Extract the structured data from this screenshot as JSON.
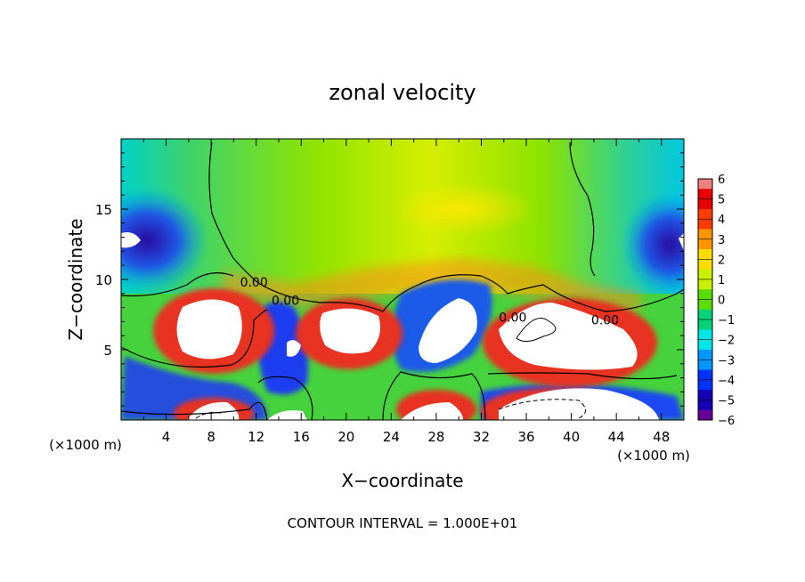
{
  "chart_data": {
    "type": "heatmap",
    "title": "zonal velocity",
    "xlabel": "X−coordinate",
    "ylabel": "Z−coordinate",
    "x_unit_left": "(×1000 m)",
    "x_unit_right": "(×1000 m)",
    "footer": "CONTOUR INTERVAL = 1.000E+01",
    "xlim": [
      0,
      50
    ],
    "ylim": [
      0,
      20
    ],
    "x_ticks": [
      4,
      8,
      12,
      16,
      20,
      24,
      28,
      32,
      36,
      40,
      44,
      48
    ],
    "x_tick_labels": [
      "4",
      "8",
      "12",
      "16",
      "20",
      "24",
      "28",
      "32",
      "36",
      "40",
      "44",
      "48"
    ],
    "y_ticks": [
      5,
      10,
      15
    ],
    "y_tick_labels": [
      "5",
      "10",
      "15"
    ],
    "colorbar": {
      "levels": [
        6,
        5,
        4,
        3,
        2,
        1,
        0,
        -1,
        -2,
        -3,
        -4,
        -5,
        -6
      ],
      "labels": [
        "6",
        "5",
        "4",
        "3",
        "2",
        "1",
        "0",
        "−1",
        "−2",
        "−3",
        "−4",
        "−5",
        "−6"
      ],
      "colors": [
        "#f08080",
        "#e80000",
        "#ff3c00",
        "#ff9600",
        "#ffdc00",
        "#c8f000",
        "#5adc00",
        "#00d278",
        "#00e6e6",
        "#0096ff",
        "#0032ff",
        "#1400b4",
        "#640096"
      ],
      "out_of_range_color": "#ffffff"
    },
    "contour_labels": [
      {
        "text": "0.00",
        "x": 11.8,
        "y": 9.5
      },
      {
        "text": "0.00",
        "x": 14.6,
        "y": 8.2
      },
      {
        "text": "0.00",
        "x": 43.0,
        "y": 6.8
      },
      {
        "text": "0.00",
        "x": 34.8,
        "y": 7.0
      }
    ],
    "field_features": {
      "upper_region": "weak positive (0 to 2), max near x=28-32, z=14-16",
      "upper_edges": "negative (-2 to -5) near x=0-6 and x=46-50 at z=11-15",
      "positive_jets_z5_to_9": [
        [
          5,
          10.5
        ],
        [
          17,
          23.5
        ],
        [
          33,
          46
        ]
      ],
      "negative_jets_z5_to_9": [
        [
          11.5,
          16
        ],
        [
          25,
          32
        ]
      ],
      "bottom_layer": "alternating cells below z=3"
    }
  }
}
